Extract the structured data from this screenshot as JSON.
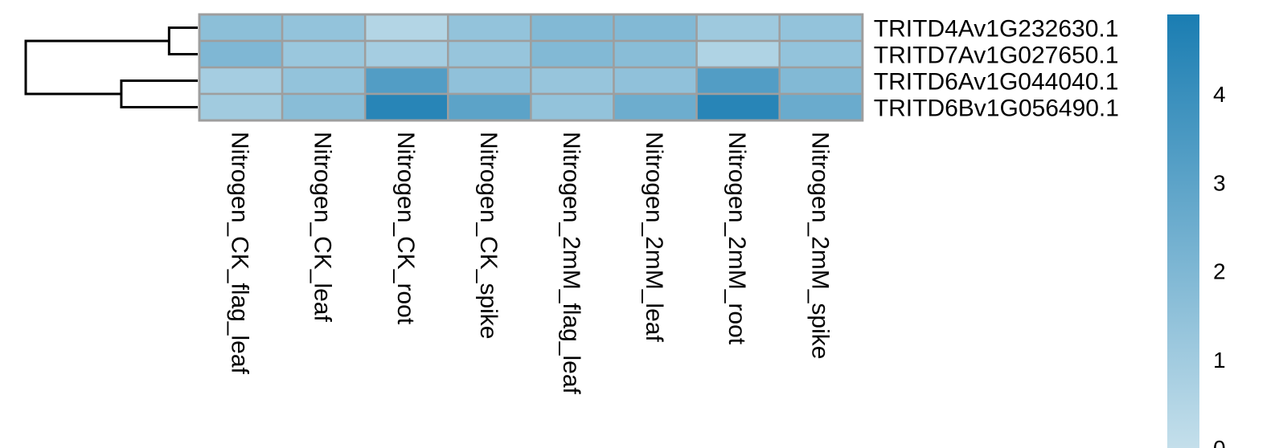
{
  "chart_data": {
    "type": "heatmap",
    "title": "",
    "xlabel": "",
    "ylabel": "",
    "rows": [
      "TRITD4Av1G232630.1",
      "TRITD7Av1G027650.1",
      "TRITD6Av1G044040.1",
      "TRITD6Bv1G056490.1"
    ],
    "columns": [
      "Nitrogen_CK_flag_leaf",
      "Nitrogen_CK_leaf",
      "Nitrogen_CK_root",
      "Nitrogen_CK_spike",
      "Nitrogen_2mM_flag_leaf",
      "Nitrogen_2mM_leaf",
      "Nitrogen_2mM_root",
      "Nitrogen_2mM_spike"
    ],
    "values": [
      [
        1.6,
        1.4,
        0.5,
        1.4,
        1.9,
        1.9,
        1.1,
        1.4
      ],
      [
        2.0,
        1.2,
        0.9,
        1.3,
        1.9,
        1.7,
        0.6,
        1.4
      ],
      [
        0.9,
        1.4,
        3.3,
        1.5,
        1.3,
        1.5,
        3.3,
        1.9
      ],
      [
        1.0,
        1.7,
        4.5,
        3.0,
        1.4,
        2.5,
        4.5,
        2.6
      ]
    ],
    "colorbar": {
      "range": [
        0,
        4.9
      ],
      "ticks": [
        0,
        1,
        2,
        3,
        4
      ],
      "color_low": "#c4dfeb",
      "color_high": "#1a7db2"
    },
    "row_dendrogram": {
      "clusters": [
        [
          [
            "TRITD4Av1G232630.1",
            "TRITD7Av1G027650.1"
          ],
          0.6
        ],
        [
          [
            "TRITD6Av1G044040.1",
            "TRITD6Bv1G056490.1"
          ],
          1.6
        ],
        [
          [
            "cluster-1",
            "cluster-2"
          ],
          3.6
        ]
      ]
    },
    "cell_border_color": "#9e9e9e"
  }
}
